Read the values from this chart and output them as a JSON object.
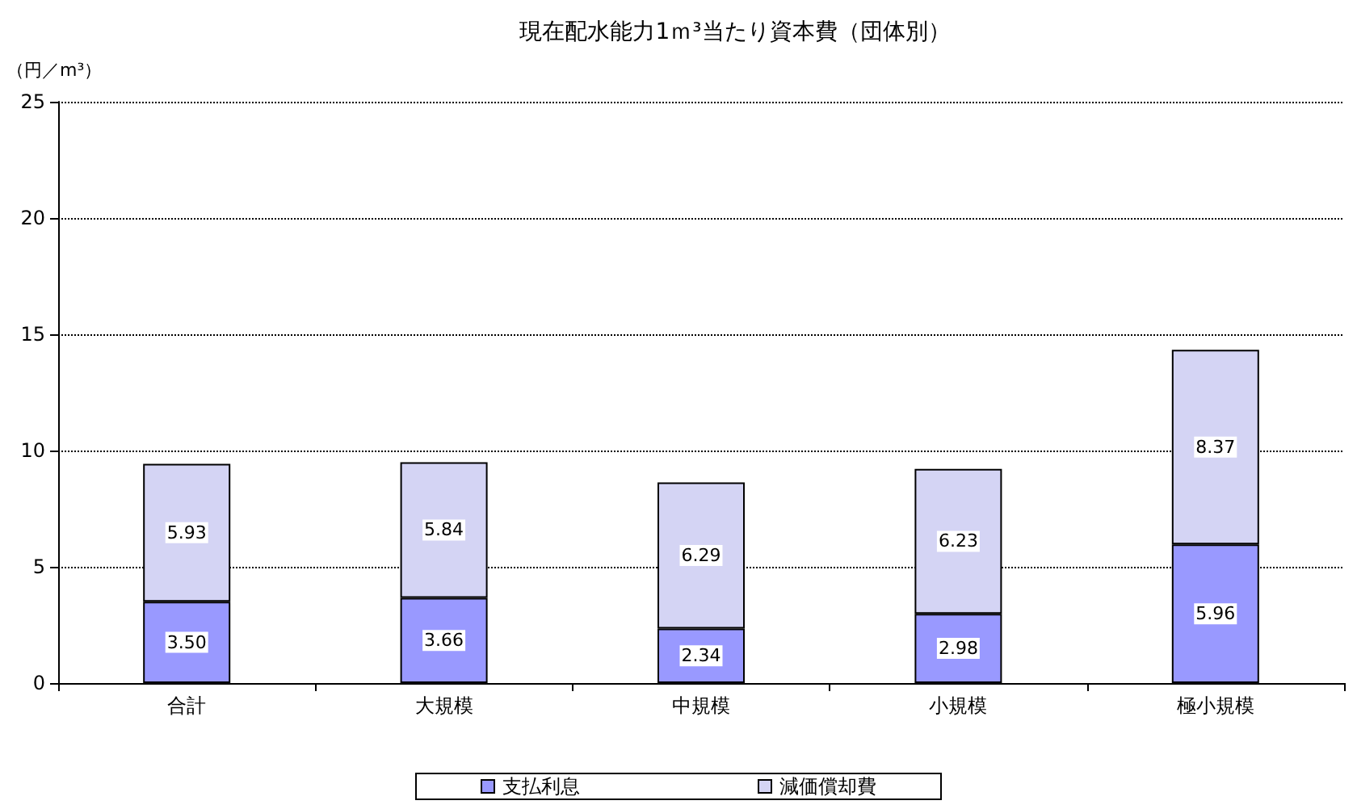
{
  "chart_data": {
    "type": "bar",
    "title": "現在配水能力1ｍ³当たり資本費（団体別）",
    "ylabel": "（円／m³）",
    "categories": [
      "合計",
      "大規模",
      "中規模",
      "小規模",
      "極小規模"
    ],
    "stacked": true,
    "series": [
      {
        "name": "支払利息",
        "color": "#9999ff",
        "values": [
          3.5,
          3.66,
          2.34,
          2.98,
          5.96
        ],
        "value_labels": [
          "3.50",
          "3.66",
          "2.34",
          "2.98",
          "5.96"
        ]
      },
      {
        "name": "減価償却費",
        "color": "#d4d4f4",
        "values": [
          5.93,
          5.84,
          6.29,
          6.23,
          8.37
        ],
        "value_labels": [
          "5.93",
          "5.84",
          "6.29",
          "6.23",
          "8.37"
        ]
      }
    ],
    "ylim": [
      0,
      25
    ],
    "yticks": [
      0,
      5,
      10,
      15,
      20,
      25
    ],
    "grid": "y",
    "legend": "bottom"
  }
}
